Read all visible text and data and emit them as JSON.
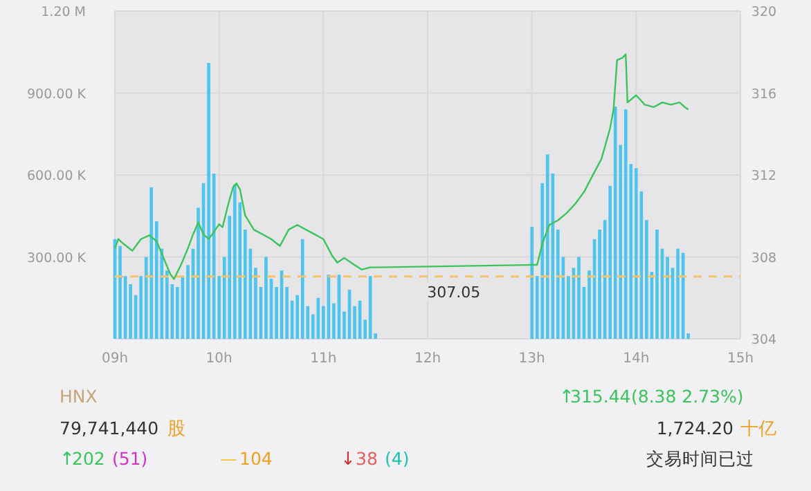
{
  "chart_data": {
    "type": "bar",
    "xlim": [
      9,
      15
    ],
    "ylim": [
      0,
      1200000
    ],
    "y2lim": [
      304,
      320
    ],
    "grid": true,
    "xticks": [
      {
        "value": 9,
        "label": "09h"
      },
      {
        "value": 10,
        "label": "10h"
      },
      {
        "value": 11,
        "label": "11h"
      },
      {
        "value": 12,
        "label": "12h"
      },
      {
        "value": 13,
        "label": "13h"
      },
      {
        "value": 14,
        "label": "14h"
      },
      {
        "value": 15,
        "label": "15h"
      }
    ],
    "yticks": [
      {
        "value": 0,
        "label": null
      },
      {
        "value": 300000,
        "label": "300.00 K"
      },
      {
        "value": 600000,
        "label": "600.00 K"
      },
      {
        "value": 900000,
        "label": "900.00 K"
      },
      {
        "value": 1200000,
        "label": "1.20 M"
      }
    ],
    "y2ticks": [
      304,
      308,
      312,
      316,
      320
    ],
    "series": [
      {
        "color": "#4fc4ec",
        "x": [
          9.0,
          9.05,
          9.1,
          9.15,
          9.2,
          9.25,
          9.3,
          9.35,
          9.4,
          9.45,
          9.5,
          9.55,
          9.6,
          9.65,
          9.7,
          9.75,
          9.8,
          9.85,
          9.9,
          9.95,
          10.0,
          10.05,
          10.1,
          10.15,
          10.2,
          10.25,
          10.3,
          10.35,
          10.4,
          10.45,
          10.5,
          10.55,
          10.6,
          10.65,
          10.7,
          10.75,
          10.8,
          10.85,
          10.9,
          10.95,
          11.0,
          11.05,
          11.1,
          11.15,
          11.2,
          11.25,
          11.3,
          11.35,
          11.4,
          11.45,
          11.5,
          13.0,
          13.05,
          13.1,
          13.15,
          13.2,
          13.25,
          13.3,
          13.35,
          13.4,
          13.45,
          13.5,
          13.55,
          13.6,
          13.65,
          13.7,
          13.75,
          13.8,
          13.85,
          13.9,
          13.95,
          14.0,
          14.05,
          14.1,
          14.15,
          14.2,
          14.25,
          14.3,
          14.35,
          14.4,
          14.45,
          14.5
        ],
        "values": [
          365000,
          340000,
          230000,
          200000,
          160000,
          230000,
          300000,
          555000,
          430000,
          330000,
          250000,
          200000,
          190000,
          230000,
          270000,
          330000,
          480000,
          570000,
          1010000,
          605000,
          230000,
          300000,
          450000,
          565000,
          500000,
          400000,
          330000,
          260000,
          190000,
          300000,
          220000,
          190000,
          250000,
          190000,
          140000,
          160000,
          365000,
          120000,
          90000,
          150000,
          120000,
          235000,
          130000,
          235000,
          100000,
          180000,
          120000,
          140000,
          70000,
          230000,
          20000,
          410000,
          230000,
          570000,
          675000,
          605000,
          400000,
          300000,
          230000,
          260000,
          300000,
          190000,
          250000,
          365000,
          400000,
          435000,
          560000,
          850000,
          710000,
          840000,
          640000,
          625000,
          540000,
          435000,
          245000,
          400000,
          330000,
          300000,
          260000,
          330000,
          315000,
          20000
        ]
      },
      {
        "type": "line",
        "axis": "y2",
        "color": "#3cc45c",
        "x": [
          9.0,
          9.033,
          9.083,
          9.167,
          9.25,
          9.333,
          9.4,
          9.467,
          9.533,
          9.567,
          9.633,
          9.7,
          9.75,
          9.8,
          9.85,
          9.9,
          9.95,
          10.0,
          10.033,
          10.083,
          10.133,
          10.167,
          10.2,
          10.25,
          10.333,
          10.417,
          10.5,
          10.583,
          10.667,
          10.75,
          10.833,
          10.917,
          11.0,
          11.083,
          11.133,
          11.2,
          11.3,
          11.367,
          11.45,
          11.5,
          13.0,
          13.05,
          13.1,
          13.167,
          13.25,
          13.333,
          13.417,
          13.5,
          13.583,
          13.667,
          13.75,
          13.783,
          13.817,
          13.867,
          13.9,
          13.917,
          14.0,
          14.083,
          14.167,
          14.25,
          14.333,
          14.417,
          14.467,
          14.5
        ],
        "values": [
          308.41,
          308.87,
          308.64,
          308.3,
          308.87,
          309.06,
          308.76,
          307.95,
          307.15,
          306.92,
          307.6,
          308.41,
          309.1,
          309.68,
          309.1,
          308.87,
          309.22,
          309.6,
          309.45,
          310.48,
          311.4,
          311.59,
          311.29,
          310.02,
          309.33,
          309.1,
          308.87,
          308.53,
          309.33,
          309.56,
          309.33,
          309.1,
          308.87,
          308.07,
          307.72,
          307.95,
          307.6,
          307.38,
          307.49,
          307.49,
          307.61,
          307.61,
          308.64,
          309.56,
          309.79,
          310.14,
          310.6,
          311.17,
          311.98,
          312.78,
          314.28,
          315.2,
          317.61,
          317.72,
          317.89,
          315.54,
          315.89,
          315.43,
          315.31,
          315.54,
          315.43,
          315.54,
          315.31,
          315.2
        ]
      }
    ],
    "ref_lines": [
      {
        "axis": "y2",
        "value": 307.05,
        "label": "307.05",
        "color": "#f5c46a",
        "line_style": "dashed"
      }
    ],
    "annotations": [
      "HNX",
      "↑",
      "315.44",
      "(8.38  2.73%)",
      "79,741,440",
      "股",
      "1,724.20",
      "十亿",
      "↑",
      "202",
      "(51)",
      "—",
      "104",
      "↓",
      "38",
      "(4)",
      "交易时间已过"
    ]
  }
}
